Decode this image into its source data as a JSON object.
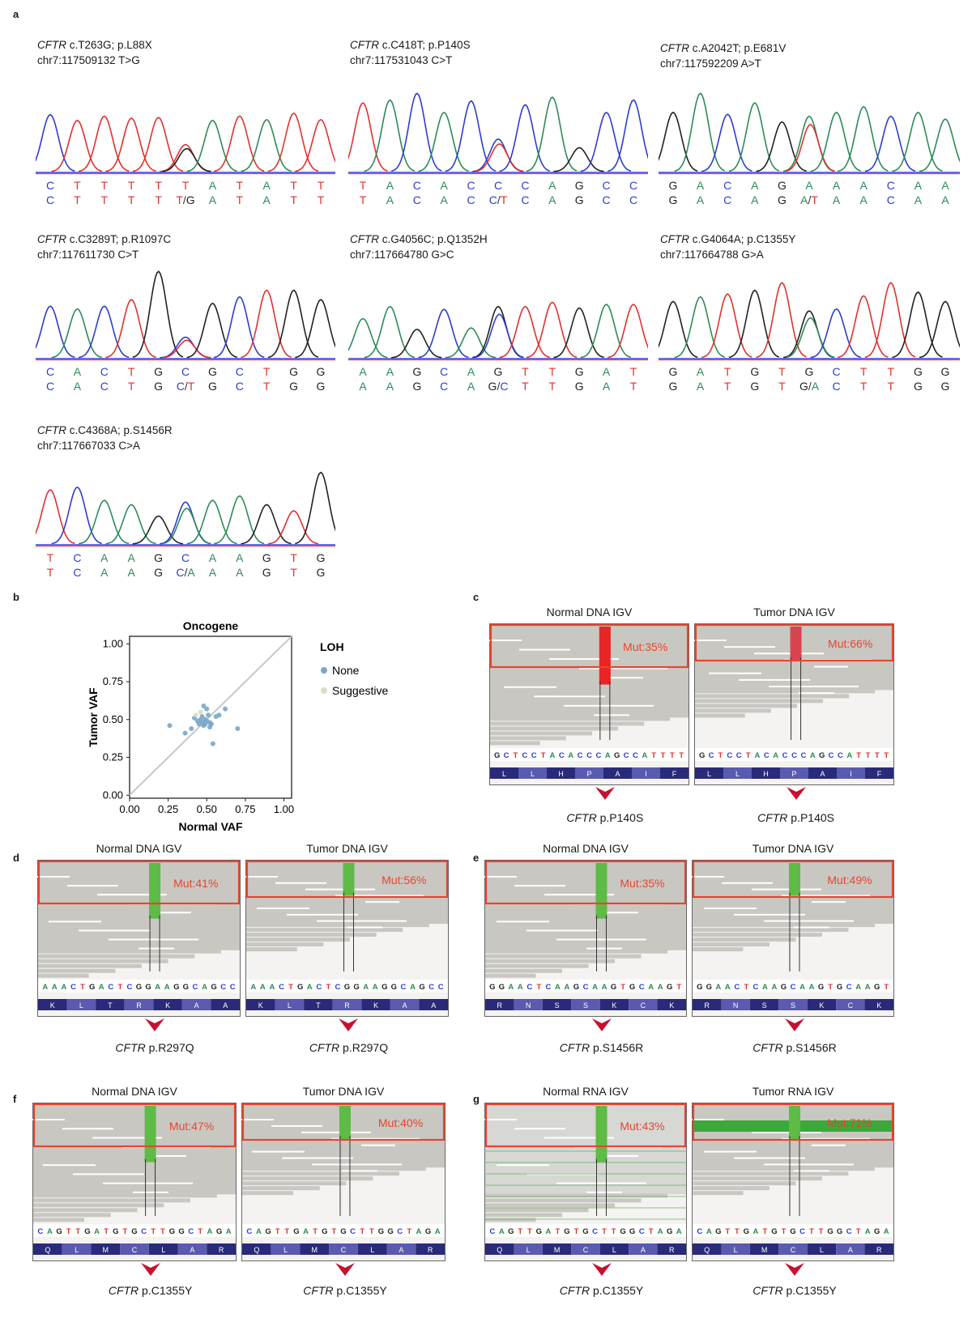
{
  "panels": {
    "a": "a",
    "b": "b",
    "c": "c",
    "d": "d",
    "e": "e",
    "f": "f",
    "g": "g"
  },
  "gene": "CFTR",
  "colors": {
    "A": "#2e8b57",
    "C": "#2d3dcf",
    "G": "#222222",
    "T": "#e0322d",
    "mut": "#e8452e"
  },
  "chromatograms": [
    {
      "variant": " c.T263G; p.L88X",
      "position": "chr7:117509132 T>G",
      "ref": [
        "C",
        "T",
        "T",
        "T",
        "T",
        "T",
        "A",
        "T",
        "A",
        "T",
        "T"
      ],
      "alt": [
        "C",
        "T",
        "T",
        "T",
        "T",
        "T/G",
        "A",
        "T",
        "A",
        "T",
        "T"
      ]
    },
    {
      "variant": " c.C418T; p.P140S",
      "position": "chr7:117531043 C>T",
      "ref": [
        "T",
        "A",
        "C",
        "A",
        "C",
        "C",
        "C",
        "A",
        "G",
        "C",
        "C"
      ],
      "alt": [
        "T",
        "A",
        "C",
        "A",
        "C",
        "C/T",
        "C",
        "A",
        "G",
        "C",
        "C"
      ]
    },
    {
      "variant": " c.A2042T; p.E681V",
      "position": "chr7:117592209 A>T",
      "ref": [
        "G",
        "A",
        "C",
        "A",
        "G",
        "A",
        "A",
        "A",
        "C",
        "A",
        "A"
      ],
      "alt": [
        "G",
        "A",
        "C",
        "A",
        "G",
        "A/T",
        "A",
        "A",
        "C",
        "A",
        "A"
      ]
    },
    {
      "variant": " c.C3289T; p.R1097C",
      "position": "chr7:117611730 C>T",
      "ref": [
        "C",
        "A",
        "C",
        "T",
        "G",
        "C",
        "G",
        "C",
        "T",
        "G",
        "G"
      ],
      "alt": [
        "C",
        "A",
        "C",
        "T",
        "G",
        "C/T",
        "G",
        "C",
        "T",
        "G",
        "G"
      ]
    },
    {
      "variant": " c.G4056C; p.Q1352H",
      "position": "chr7:117664780 G>C",
      "ref": [
        "A",
        "A",
        "G",
        "C",
        "A",
        "G",
        "T",
        "T",
        "G",
        "A",
        "T"
      ],
      "alt": [
        "A",
        "A",
        "G",
        "C",
        "A",
        "G/C",
        "T",
        "T",
        "G",
        "A",
        "T"
      ]
    },
    {
      "variant": " c.G4064A; p.C1355Y",
      "position": "chr7:117664788 G>A",
      "ref": [
        "G",
        "A",
        "T",
        "G",
        "T",
        "G",
        "C",
        "T",
        "T",
        "G",
        "G"
      ],
      "alt": [
        "G",
        "A",
        "T",
        "G",
        "T",
        "G/A",
        "C",
        "T",
        "T",
        "G",
        "G"
      ]
    },
    {
      "variant": " c.C4368A; p.S1456R",
      "position": "chr7:117667033 C>A",
      "ref": [
        "T",
        "C",
        "A",
        "A",
        "G",
        "C",
        "A",
        "A",
        "G",
        "T",
        "G"
      ],
      "alt": [
        "T",
        "C",
        "A",
        "A",
        "G",
        "C/A",
        "A",
        "A",
        "G",
        "T",
        "G"
      ]
    }
  ],
  "chart_data": {
    "type": "scatter",
    "title": "Oncogene",
    "xlabel": "Normal VAF",
    "ylabel": "Tumor VAF",
    "xlim": [
      0,
      1.05
    ],
    "ylim": [
      -0.02,
      1.05
    ],
    "xticks": [
      "0.00",
      "0.25",
      "0.50",
      "0.75",
      "1.00"
    ],
    "yticks": [
      "0.00",
      "0.25",
      "0.50",
      "0.75",
      "1.00"
    ],
    "legend_title": "LOH",
    "reference_line": "y = x",
    "series": [
      {
        "name": "None",
        "color": "#7aa6c8",
        "x": [
          0.26,
          0.36,
          0.4,
          0.42,
          0.44,
          0.45,
          0.46,
          0.47,
          0.47,
          0.48,
          0.48,
          0.49,
          0.49,
          0.5,
          0.5,
          0.51,
          0.52,
          0.52,
          0.53,
          0.54,
          0.56,
          0.58,
          0.62,
          0.7
        ],
        "y": [
          0.46,
          0.41,
          0.44,
          0.51,
          0.49,
          0.47,
          0.5,
          0.48,
          0.52,
          0.59,
          0.46,
          0.47,
          0.5,
          0.49,
          0.57,
          0.53,
          0.45,
          0.48,
          0.47,
          0.34,
          0.52,
          0.53,
          0.57,
          0.44
        ]
      },
      {
        "name": "Suggestive",
        "color": "#d4e0c4",
        "x": [
          0.43,
          0.46
        ],
        "y": [
          0.53,
          0.55
        ]
      }
    ]
  },
  "igv_panels": [
    {
      "id": "c",
      "left_title": "Normal DNA IGV",
      "right_title": "Tumor DNA IGV",
      "left_mut": "Mut:35%",
      "right_mut": "Mut:66%",
      "bar": "red",
      "seq": "GCTCCTACACCCAGCCATTTT",
      "aa": [
        "L",
        "L",
        "H",
        "P",
        "A",
        "I",
        "F"
      ],
      "left_label": " p.P140S",
      "right_label": " p.P140S"
    },
    {
      "id": "d",
      "left_title": "Normal DNA IGV",
      "right_title": "Tumor DNA IGV",
      "left_mut": "Mut:41%",
      "right_mut": "Mut:56%",
      "bar": "green",
      "seq": "AAACTGACTCGGAAGGCAGCC",
      "aa": [
        "K",
        "L",
        "T",
        "R",
        "K",
        "A",
        "A"
      ],
      "left_label": " p.R297Q",
      "right_label": " p.R297Q"
    },
    {
      "id": "e",
      "left_title": "Normal DNA IGV",
      "right_title": "Tumor DNA IGV",
      "left_mut": "Mut:35%",
      "right_mut": "Mut:49%",
      "bar": "green",
      "seq": "GGAACTCAAGCAAGTGCAAGT",
      "aa": [
        "R",
        "N",
        "S",
        "S",
        "K",
        "C",
        "K"
      ],
      "left_label": " p.S1456R",
      "right_label": " p.S1456R"
    },
    {
      "id": "f",
      "left_title": "Normal DNA IGV",
      "right_title": "Tumor DNA IGV",
      "left_mut": "Mut:47%",
      "right_mut": "Mut:40%",
      "bar": "green",
      "seq": "CAGTTGATGTGCTTGGCTAGA",
      "aa": [
        "Q",
        "L",
        "M",
        "C",
        "L",
        "A",
        "R"
      ],
      "left_label": " p.C1355Y",
      "right_label": " p.C1355Y"
    },
    {
      "id": "g",
      "left_title": "Normal RNA IGV",
      "right_title": "Tumor RNA IGV",
      "left_mut": "Mut:43%",
      "right_mut": "Mut:71%",
      "bar": "green",
      "seq": "CAGTTGATGTGCTTGGCTAGA",
      "aa": [
        "Q",
        "L",
        "M",
        "C",
        "L",
        "A",
        "R"
      ],
      "left_label": " p.C1355Y",
      "right_label": " p.C1355Y"
    }
  ]
}
